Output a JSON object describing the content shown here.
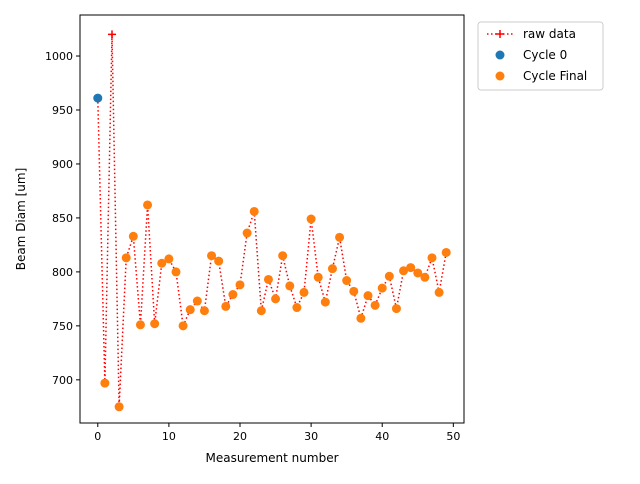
{
  "chart_data": {
    "type": "scatter",
    "xlabel": "Measurement number",
    "ylabel": "Beam Diam [um]",
    "xlim": [
      -2.5,
      51.5
    ],
    "ylim": [
      660,
      1038
    ],
    "xticks": [
      0,
      10,
      20,
      30,
      40,
      50
    ],
    "yticks": [
      700,
      750,
      800,
      850,
      900,
      950,
      1000
    ],
    "grid": false,
    "legend_position": "outside top-right",
    "series": [
      {
        "name": "raw data",
        "style": "dotted line with plus markers",
        "color": "#ff0000",
        "x": [
          0,
          1,
          2,
          3,
          4,
          5,
          6,
          7,
          8,
          9,
          10,
          11,
          12,
          13,
          14,
          15,
          16,
          17,
          18,
          19,
          20,
          21,
          22,
          23,
          24,
          25,
          26,
          27,
          28,
          29,
          30,
          31,
          32,
          33,
          34,
          35,
          36,
          37,
          38,
          39,
          40,
          41,
          42,
          43,
          44,
          45,
          46,
          47,
          48,
          49
        ],
        "y": [
          961,
          697,
          1020,
          675,
          813,
          833,
          751,
          862,
          752,
          808,
          812,
          800,
          750,
          765,
          773,
          764,
          815,
          810,
          768,
          779,
          788,
          836,
          856,
          764,
          793,
          775,
          815,
          787,
          767,
          781,
          849,
          795,
          772,
          803,
          832,
          792,
          782,
          757,
          778,
          769,
          785,
          796,
          766,
          801,
          804,
          799,
          795,
          813,
          781,
          818
        ]
      },
      {
        "name": "Cycle 0",
        "style": "scatter",
        "color": "#1f77b4",
        "x": [
          0
        ],
        "y": [
          961
        ]
      },
      {
        "name": "Cycle Final",
        "style": "scatter",
        "color": "#ff7f0e",
        "x": [
          1,
          3,
          4,
          5,
          6,
          7,
          8,
          9,
          10,
          11,
          12,
          13,
          14,
          15,
          16,
          17,
          18,
          19,
          20,
          21,
          22,
          23,
          24,
          25,
          26,
          27,
          28,
          29,
          30,
          31,
          32,
          33,
          34,
          35,
          36,
          37,
          38,
          39,
          40,
          41,
          42,
          43,
          44,
          45,
          46,
          47,
          48,
          49
        ],
        "y": [
          697,
          675,
          813,
          833,
          751,
          862,
          752,
          808,
          812,
          800,
          750,
          765,
          773,
          764,
          815,
          810,
          768,
          779,
          788,
          836,
          856,
          764,
          793,
          775,
          815,
          787,
          767,
          781,
          849,
          795,
          772,
          803,
          832,
          792,
          782,
          757,
          778,
          769,
          785,
          796,
          766,
          801,
          804,
          799,
          795,
          813,
          781,
          818
        ]
      }
    ]
  }
}
